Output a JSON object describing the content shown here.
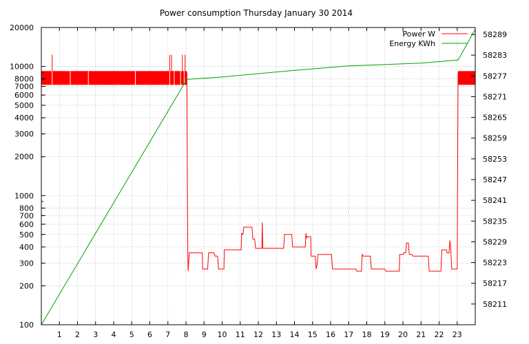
{
  "chart_data": {
    "type": "line",
    "title": "Power consumption Thursday January 30 2014",
    "xlabel": "",
    "ylabel": "",
    "y2label": "",
    "grid": true,
    "legend_position": "top-right",
    "x_range": [
      0,
      24
    ],
    "x_ticks": [
      "1",
      "2",
      "3",
      "4",
      "5",
      "6",
      "7",
      "8",
      "9",
      "10",
      "11",
      "12",
      "13",
      "14",
      "15",
      "16",
      "17",
      "18",
      "19",
      "20",
      "21",
      "22",
      "23"
    ],
    "y_scale": "log",
    "y_range": [
      100,
      20000
    ],
    "y_ticks": [
      "100",
      "200",
      "300",
      "400",
      "500",
      "600",
      "700",
      "800",
      "1000",
      "2000",
      "3000",
      "4000",
      "5000",
      "6000",
      "7000",
      "8000",
      "10000",
      "20000"
    ],
    "y2_range": [
      58205,
      58291
    ],
    "y2_ticks": [
      "58211",
      "58217",
      "58223",
      "58229",
      "58235",
      "58241",
      "58247",
      "58253",
      "58259",
      "58265",
      "58271",
      "58277",
      "58283",
      "58289"
    ],
    "series": [
      {
        "name": "Power W",
        "color": "#ff0000",
        "axis": "left",
        "band": {
          "x_start": 0,
          "x_end": 8.05,
          "y_low": 7200,
          "y_high": 9200
        },
        "spikes": [
          0.6,
          1.6,
          2.6,
          5.2,
          7.1,
          7.35,
          7.7,
          7.9
        ],
        "tall_spikes": [
          0.6,
          7.1,
          7.2,
          7.8,
          7.95
        ],
        "late_band": {
          "x_start": 23.05,
          "x_end": 24,
          "y_low": 7200,
          "y_high": 9200
        },
        "points": [
          [
            8.05,
            9000
          ],
          [
            8.1,
            350
          ],
          [
            8.12,
            260
          ],
          [
            8.18,
            360
          ],
          [
            8.9,
            360
          ],
          [
            8.92,
            270
          ],
          [
            9.2,
            270
          ],
          [
            9.25,
            360
          ],
          [
            9.55,
            360
          ],
          [
            9.6,
            340
          ],
          [
            9.75,
            340
          ],
          [
            9.8,
            270
          ],
          [
            10.1,
            270
          ],
          [
            10.12,
            380
          ],
          [
            11.05,
            380
          ],
          [
            11.08,
            510
          ],
          [
            11.15,
            500
          ],
          [
            11.2,
            570
          ],
          [
            11.65,
            570
          ],
          [
            11.7,
            460
          ],
          [
            11.8,
            460
          ],
          [
            11.85,
            390
          ],
          [
            12.2,
            390
          ],
          [
            12.22,
            620
          ],
          [
            12.25,
            390
          ],
          [
            13.4,
            390
          ],
          [
            13.45,
            500
          ],
          [
            13.85,
            500
          ],
          [
            13.9,
            400
          ],
          [
            14.6,
            400
          ],
          [
            14.63,
            510
          ],
          [
            14.67,
            470
          ],
          [
            14.7,
            480
          ],
          [
            14.9,
            480
          ],
          [
            14.92,
            340
          ],
          [
            15.15,
            340
          ],
          [
            15.2,
            270
          ],
          [
            15.25,
            290
          ],
          [
            15.3,
            350
          ],
          [
            15.4,
            350
          ],
          [
            16.05,
            350
          ],
          [
            16.1,
            270
          ],
          [
            17.4,
            270
          ],
          [
            17.45,
            260
          ],
          [
            17.7,
            260
          ],
          [
            17.75,
            350
          ],
          [
            17.8,
            340
          ],
          [
            18.2,
            340
          ],
          [
            18.25,
            270
          ],
          [
            19.0,
            270
          ],
          [
            19.05,
            260
          ],
          [
            19.8,
            260
          ],
          [
            19.82,
            350
          ],
          [
            20.0,
            350
          ],
          [
            20.05,
            360
          ],
          [
            20.15,
            360
          ],
          [
            20.2,
            430
          ],
          [
            20.3,
            430
          ],
          [
            20.35,
            350
          ],
          [
            20.5,
            350
          ],
          [
            20.55,
            340
          ],
          [
            21.4,
            340
          ],
          [
            21.45,
            260
          ],
          [
            22.1,
            260
          ],
          [
            22.15,
            380
          ],
          [
            22.4,
            380
          ],
          [
            22.45,
            360
          ],
          [
            22.55,
            360
          ],
          [
            22.6,
            450
          ],
          [
            22.65,
            370
          ],
          [
            22.7,
            270
          ],
          [
            23.0,
            270
          ],
          [
            23.05,
            9000
          ]
        ]
      },
      {
        "name": "Energy KWh",
        "color": "#00a000",
        "axis": "right",
        "points": [
          [
            0,
            58205
          ],
          [
            8.05,
            58276
          ],
          [
            10,
            58276.7
          ],
          [
            14,
            58278.6
          ],
          [
            17,
            58279.9
          ],
          [
            21,
            58280.7
          ],
          [
            23.05,
            58281.6
          ],
          [
            24,
            58290.5
          ]
        ]
      }
    ]
  }
}
